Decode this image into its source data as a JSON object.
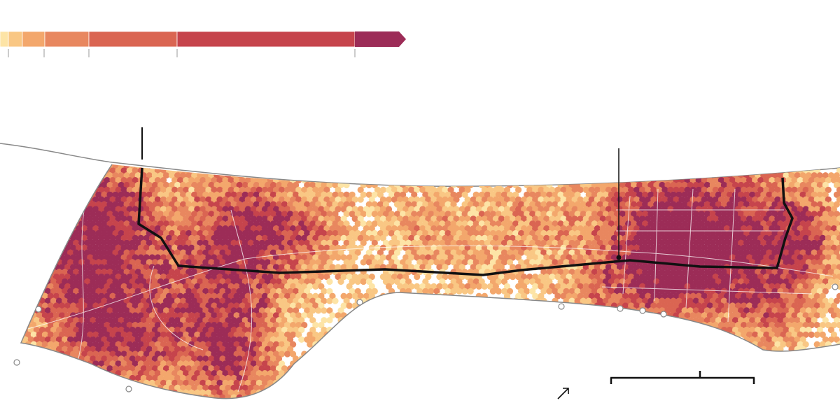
{
  "legend": {
    "colors": [
      "#fde4a6",
      "#f9c784",
      "#f3a76c",
      "#e8875f",
      "#da6552",
      "#c6444c",
      "#9c2c57"
    ]
  }
}
